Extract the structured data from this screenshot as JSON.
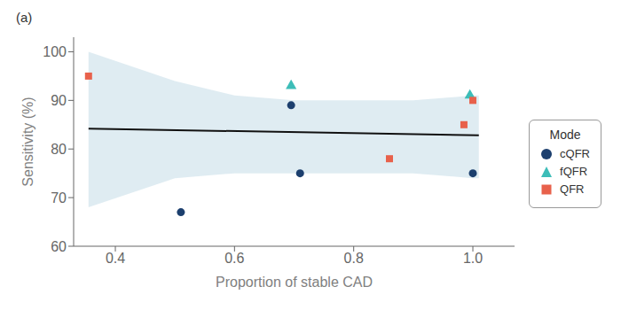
{
  "chart_data": {
    "type": "scatter",
    "title": "(a)",
    "x_label": "Proportion of stable CAD",
    "y_label": "Sensitivity (%)",
    "xlim": [
      0.33,
      1.07
    ],
    "ylim": [
      60,
      103
    ],
    "xticks": [
      0.4,
      0.6,
      0.8,
      {
        "value": 1,
        "label": "1.0"
      }
    ],
    "yticks": [
      60,
      70,
      80,
      90,
      100
    ],
    "legend": "right",
    "legend_title": "Mode",
    "series": [
      {
        "type": "band",
        "color": "#c5dce8",
        "x": [
          0.355,
          0.5,
          0.6,
          0.7,
          0.8,
          0.9,
          1.0,
          1.01
        ],
        "lower": [
          68,
          74,
          75,
          75,
          75,
          75,
          74,
          74
        ],
        "upper": [
          100,
          94,
          91,
          90,
          90,
          90,
          91,
          91
        ]
      },
      {
        "type": "line",
        "color": "#111111",
        "x": [
          0.355,
          1.01
        ],
        "values": [
          84.2,
          82.8
        ]
      },
      {
        "name": "cQFR",
        "type": "scatter",
        "marker": "circle",
        "color": "#1c3f6e",
        "x": [
          0.51,
          0.695,
          0.71,
          1.0
        ],
        "values": [
          67,
          89,
          75,
          75
        ]
      },
      {
        "name": "fQFR",
        "type": "scatter",
        "marker": "triangle",
        "color": "#3dbdb8",
        "x": [
          0.695,
          0.995
        ],
        "values": [
          93,
          91
        ]
      },
      {
        "name": "QFR",
        "type": "scatter",
        "marker": "square",
        "color": "#e8614b",
        "x": [
          0.355,
          0.86,
          0.985,
          1.0
        ],
        "values": [
          95,
          78,
          85,
          90
        ]
      }
    ]
  }
}
